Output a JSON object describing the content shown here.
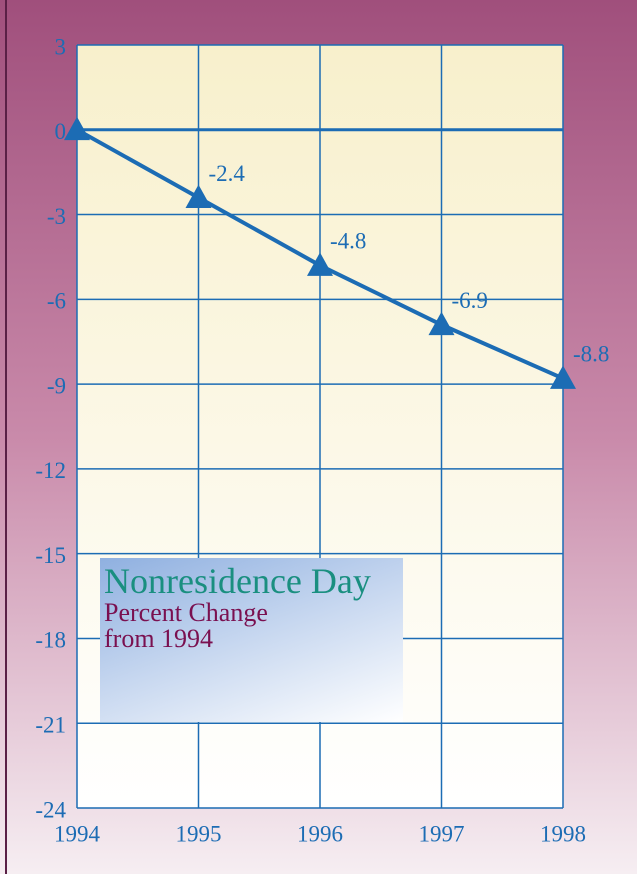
{
  "chart_data": {
    "type": "line",
    "title": "Nonresidence Day",
    "subtitle": "Percent Change from 1994",
    "categories": [
      "1994",
      "1995",
      "1996",
      "1997",
      "1998"
    ],
    "values": [
      0,
      -2.4,
      -4.8,
      -6.9,
      -8.8
    ],
    "value_labels": [
      null,
      "-2.4",
      "-4.8",
      "-6.9",
      "-8.8"
    ],
    "color": "#1c6cb4",
    "marker": "triangle",
    "ylim": [
      3,
      -24
    ],
    "yticks": [
      3,
      0,
      -3,
      -6,
      -9,
      -12,
      -15,
      -18,
      -21,
      -24
    ],
    "grid": true
  }
}
